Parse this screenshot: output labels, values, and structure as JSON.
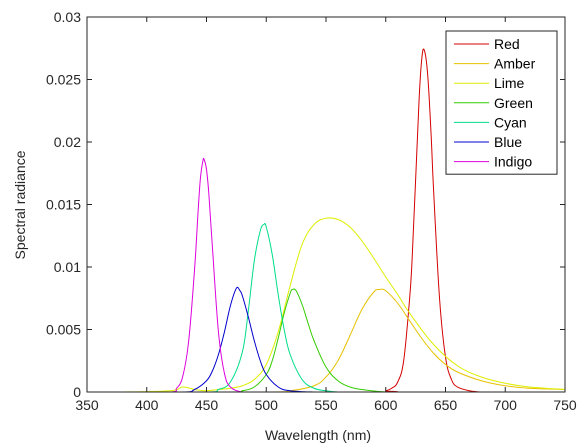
{
  "chart_data": {
    "type": "line",
    "xlabel": "Wavelength (nm)",
    "ylabel": "Spectral radiance",
    "xlim": [
      350,
      750
    ],
    "ylim": [
      0,
      0.03
    ],
    "x_ticks": [
      350,
      400,
      450,
      500,
      550,
      600,
      650,
      700,
      750
    ],
    "x_tick_labels": [
      "350",
      "400",
      "450",
      "500",
      "550",
      "600",
      "650",
      "700",
      "750"
    ],
    "y_ticks": [
      0,
      0.005,
      0.01,
      0.015,
      0.02,
      0.025,
      0.03
    ],
    "y_tick_labels": [
      "0",
      "0.005",
      "0.01",
      "0.015",
      "0.02",
      "0.025",
      "0.03"
    ],
    "grid": false,
    "legend_position": "top-right",
    "series": [
      {
        "name": "Red",
        "color": "#d40000",
        "x": [
          380,
          590,
          600,
          605,
          610,
          615,
          620,
          622,
          625,
          628,
          630,
          632,
          635,
          638,
          640,
          645,
          650,
          655,
          660,
          670,
          680,
          700,
          750
        ],
        "y": [
          0,
          0,
          0.0001,
          0.0003,
          0.0008,
          0.0025,
          0.0075,
          0.0105,
          0.017,
          0.0236,
          0.0265,
          0.0274,
          0.0255,
          0.0205,
          0.0162,
          0.0075,
          0.0028,
          0.001,
          0.0004,
          0.0001,
          0,
          0,
          0
        ]
      },
      {
        "name": "Amber",
        "color": "#e6c200",
        "x": [
          380,
          500,
          520,
          540,
          550,
          560,
          570,
          580,
          590,
          595,
          600,
          610,
          620,
          630,
          640,
          650,
          660,
          680,
          700,
          720,
          750
        ],
        "y": [
          0,
          0,
          0.0001,
          0.0005,
          0.0012,
          0.0025,
          0.0045,
          0.0066,
          0.008,
          0.0082,
          0.0081,
          0.0071,
          0.0057,
          0.0043,
          0.0031,
          0.0022,
          0.0016,
          0.0009,
          0.0005,
          0.0003,
          0.0002
        ]
      },
      {
        "name": "Lime",
        "color": "#ddee00",
        "x": [
          380,
          420,
          430,
          440,
          450,
          460,
          470,
          480,
          490,
          500,
          510,
          520,
          530,
          540,
          550,
          560,
          570,
          580,
          590,
          600,
          610,
          620,
          640,
          660,
          680,
          700,
          720,
          750
        ],
        "y": [
          0,
          0.0001,
          0.0004,
          0.0002,
          0.0001,
          0.0002,
          0.0003,
          0.0005,
          0.001,
          0.0022,
          0.0048,
          0.0085,
          0.0118,
          0.0134,
          0.0139,
          0.0138,
          0.0132,
          0.0121,
          0.0107,
          0.0092,
          0.0078,
          0.0063,
          0.0038,
          0.0021,
          0.0012,
          0.0007,
          0.0004,
          0.0002
        ]
      },
      {
        "name": "Green",
        "color": "#33cc00",
        "x": [
          380,
          470,
          480,
          490,
          500,
          505,
          510,
          515,
          520,
          522,
          525,
          530,
          535,
          540,
          550,
          560,
          570,
          580,
          600,
          620,
          650
        ],
        "y": [
          0,
          0,
          0.0001,
          0.0004,
          0.0014,
          0.0025,
          0.0043,
          0.0063,
          0.0079,
          0.0082,
          0.0081,
          0.007,
          0.0055,
          0.0041,
          0.002,
          0.0009,
          0.0004,
          0.0002,
          0,
          0,
          0
        ]
      },
      {
        "name": "Cyan",
        "color": "#00dd88",
        "x": [
          380,
          450,
          460,
          470,
          480,
          485,
          490,
          495,
          498,
          500,
          505,
          510,
          515,
          520,
          530,
          540,
          550,
          560,
          580,
          600
        ],
        "y": [
          0,
          0,
          0.0002,
          0.0008,
          0.0032,
          0.0065,
          0.0105,
          0.0129,
          0.0134,
          0.0132,
          0.011,
          0.0078,
          0.005,
          0.003,
          0.001,
          0.0003,
          0.0001,
          0,
          0,
          0
        ]
      },
      {
        "name": "Blue",
        "color": "#0000cc",
        "x": [
          380,
          430,
          440,
          450,
          455,
          460,
          465,
          470,
          475,
          478,
          480,
          485,
          490,
          495,
          500,
          510,
          520,
          540,
          560
        ],
        "y": [
          0,
          0,
          0.0002,
          0.0009,
          0.0017,
          0.003,
          0.0048,
          0.0069,
          0.0083,
          0.0081,
          0.0077,
          0.006,
          0.0041,
          0.0025,
          0.0014,
          0.0004,
          0.0001,
          0,
          0
        ]
      },
      {
        "name": "Indigo",
        "color": "#dd00dd",
        "x": [
          380,
          420,
          425,
          430,
          435,
          440,
          443,
          445,
          447,
          448,
          450,
          452,
          455,
          460,
          465,
          470,
          480,
          490,
          500
        ],
        "y": [
          0,
          0,
          0.0003,
          0.0012,
          0.004,
          0.0098,
          0.0145,
          0.0172,
          0.0185,
          0.0186,
          0.0178,
          0.0158,
          0.0115,
          0.0048,
          0.0015,
          0.0004,
          0,
          0,
          0
        ]
      }
    ]
  }
}
